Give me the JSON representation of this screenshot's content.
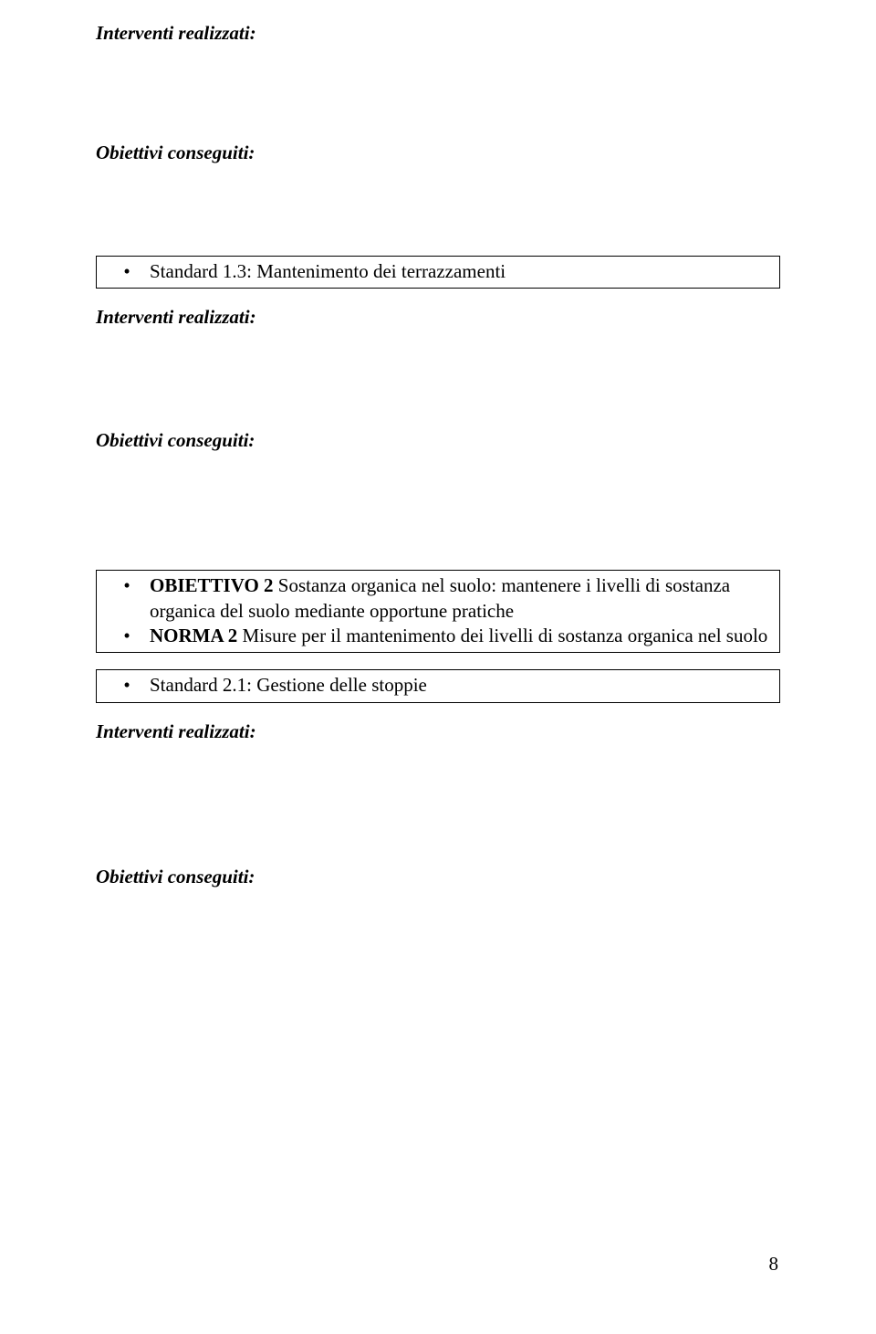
{
  "colors": {
    "background": "#ffffff",
    "text": "#000000",
    "border": "#000000"
  },
  "typography": {
    "font_family": "Times New Roman",
    "body_fontsize_pt": 16,
    "line_height": 1.3
  },
  "labels": {
    "interventi_realizzati": "Interventi realizzati:",
    "obiettivi_conseguiti": "Obiettivi conseguiti:"
  },
  "box1": {
    "bullet_text": "Standard 1.3: Mantenimento dei terrazzamenti"
  },
  "box2": {
    "bullet1_prefix_bold": "OBIETTIVO 2",
    "bullet1_rest": " Sostanza organica nel suolo: mantenere i livelli di sostanza organica del suolo mediante opportune pratiche",
    "bullet2_prefix_bold": "NORMA 2",
    "bullet2_rest": " Misure per il mantenimento dei livelli di sostanza organica nel suolo"
  },
  "box3": {
    "bullet_text": "Standard 2.1: Gestione delle stoppie"
  },
  "page_number": "8"
}
